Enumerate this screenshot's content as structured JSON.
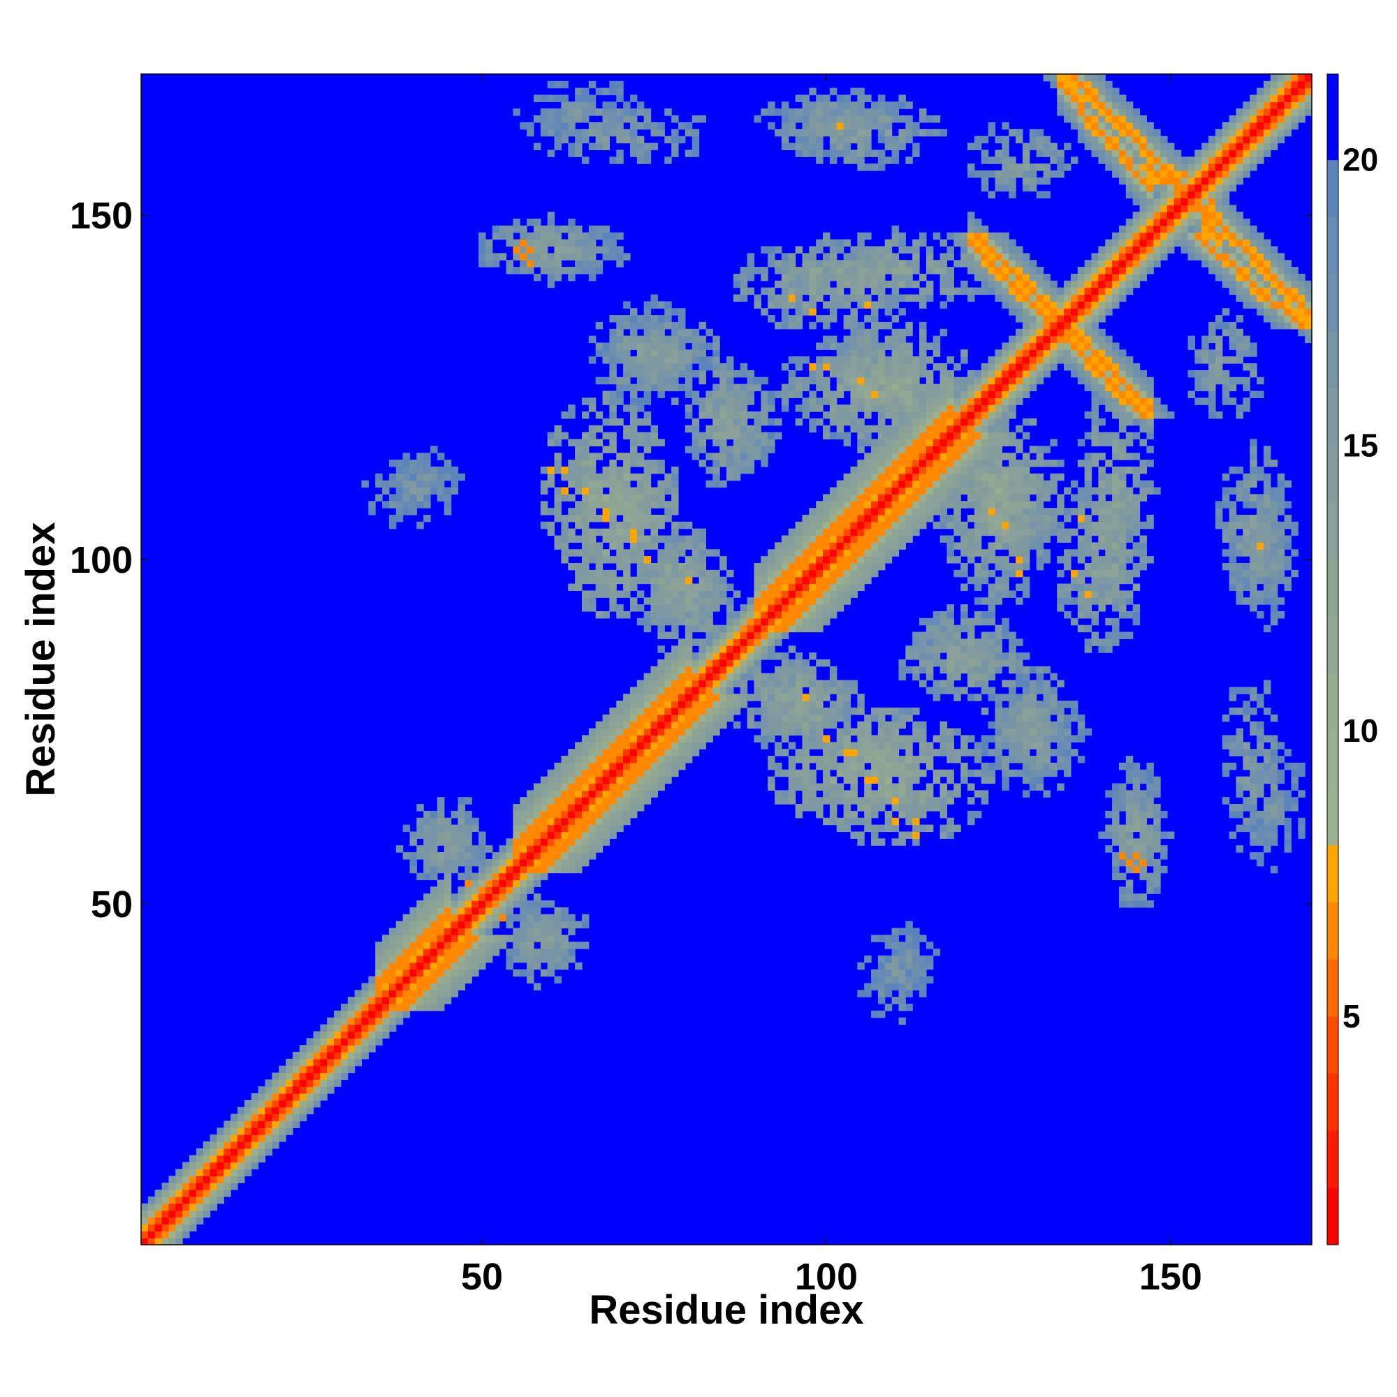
{
  "chart_data": {
    "type": "heatmap",
    "title": "",
    "xlabel": "Residue index",
    "ylabel": "Residue index",
    "xlim": [
      1,
      170
    ],
    "ylim": [
      1,
      170
    ],
    "n_residues": 170,
    "x_ticks": [
      50,
      100,
      150
    ],
    "y_ticks": [
      50,
      100,
      150
    ],
    "x_tick_labels": [
      "50",
      "100",
      "150"
    ],
    "y_tick_labels": [
      "50",
      "100",
      "150"
    ],
    "colorbar": {
      "range": [
        1,
        21.5
      ],
      "ticks": [
        5,
        10,
        15,
        20
      ],
      "tick_labels": [
        "5",
        "10",
        "15",
        "20"
      ],
      "levels": [
        {
          "upper": 2,
          "color": "#ff0000"
        },
        {
          "upper": 3,
          "color": "#ff1a00"
        },
        {
          "upper": 4,
          "color": "#ff3300"
        },
        {
          "upper": 5,
          "color": "#ff4d00"
        },
        {
          "upper": 6,
          "color": "#ff6a00"
        },
        {
          "upper": 7,
          "color": "#ff8800"
        },
        {
          "upper": 8,
          "color": "#ffa500"
        },
        {
          "upper": 9,
          "color": "#9cb18f"
        },
        {
          "upper": 10,
          "color": "#9bb08f"
        },
        {
          "upper": 11,
          "color": "#98ad90"
        },
        {
          "upper": 12,
          "color": "#93a893"
        },
        {
          "upper": 13,
          "color": "#8da495"
        },
        {
          "upper": 14,
          "color": "#8aa09a"
        },
        {
          "upper": 15,
          "color": "#859c9d"
        },
        {
          "upper": 16,
          "color": "#7f99a2"
        },
        {
          "upper": 17,
          "color": "#7895a8"
        },
        {
          "upper": 18,
          "color": "#6f8fae"
        },
        {
          "upper": 19,
          "color": "#678ab4"
        },
        {
          "upper": 20,
          "color": "#5b84bb"
        },
        {
          "upper": 21.5,
          "color": "#0000ff"
        }
      ]
    },
    "background_value": 21.5,
    "features": {
      "diagonal": {
        "value": 1
      },
      "diagonal_band": [
        {
          "from": 1,
          "to": 170,
          "offset": 1,
          "value": 4
        },
        {
          "from": 1,
          "to": 170,
          "offset": 2,
          "value": 7
        },
        {
          "from": 1,
          "to": 170,
          "offset": 3,
          "value": 10
        },
        {
          "from": 1,
          "to": 170,
          "offset": 4,
          "value": 13
        },
        {
          "from": 1,
          "to": 170,
          "offset": 5,
          "value": 17
        }
      ],
      "helix_segments": [
        {
          "from": 35,
          "to": 45
        },
        {
          "from": 55,
          "to": 80
        },
        {
          "from": 90,
          "to": 118
        }
      ],
      "antiparallel_strips": [
        {
          "x": [
            136,
            150
          ],
          "y": [
            170,
            156
          ],
          "value": 6
        },
        {
          "x": [
            122,
            136
          ],
          "y": [
            147,
            133
          ],
          "value": 6
        },
        {
          "x": [
            135,
            146
          ],
          "y": [
            132,
            121
          ],
          "value": 6
        },
        {
          "x": [
            154,
            169
          ],
          "y": [
            147,
            134
          ],
          "value": 6
        },
        {
          "x": [
            147,
            156
          ],
          "y": [
            157,
            150
          ],
          "value": 6
        }
      ],
      "contact_blobs": [
        {
          "cx": 68,
          "cy": 110,
          "rx": 10,
          "ry": 14,
          "value": 12
        },
        {
          "cx": 80,
          "cy": 95,
          "rx": 7,
          "ry": 10,
          "value": 13
        },
        {
          "cx": 105,
          "cy": 70,
          "rx": 14,
          "ry": 10,
          "value": 12
        },
        {
          "cx": 97,
          "cy": 78,
          "rx": 8,
          "ry": 8,
          "value": 13
        },
        {
          "cx": 110,
          "cy": 125,
          "rx": 12,
          "ry": 10,
          "value": 12
        },
        {
          "cx": 100,
          "cy": 140,
          "rx": 14,
          "ry": 7,
          "value": 13
        },
        {
          "cx": 75,
          "cy": 130,
          "rx": 10,
          "ry": 8,
          "value": 14
        },
        {
          "cx": 70,
          "cy": 162,
          "rx": 14,
          "ry": 5,
          "value": 15
        },
        {
          "cx": 100,
          "cy": 164,
          "rx": 10,
          "ry": 5,
          "value": 15
        },
        {
          "cx": 60,
          "cy": 145,
          "rx": 10,
          "ry": 5,
          "value": 14
        },
        {
          "cx": 125,
          "cy": 105,
          "rx": 8,
          "ry": 12,
          "value": 13
        },
        {
          "cx": 142,
          "cy": 110,
          "rx": 6,
          "ry": 16,
          "value": 13
        },
        {
          "cx": 162,
          "cy": 105,
          "rx": 6,
          "ry": 12,
          "value": 14
        },
        {
          "cx": 145,
          "cy": 60,
          "rx": 4,
          "ry": 12,
          "value": 14
        },
        {
          "cx": 130,
          "cy": 75,
          "rx": 6,
          "ry": 8,
          "value": 15
        },
        {
          "cx": 165,
          "cy": 65,
          "rx": 5,
          "ry": 10,
          "value": 16
        },
        {
          "cx": 110,
          "cy": 40,
          "rx": 6,
          "ry": 8,
          "value": 16
        },
        {
          "cx": 45,
          "cy": 60,
          "rx": 6,
          "ry": 6,
          "value": 14
        },
        {
          "cx": 58,
          "cy": 45,
          "rx": 5,
          "ry": 8,
          "value": 14
        },
        {
          "cx": 42,
          "cy": 112,
          "rx": 7,
          "ry": 5,
          "value": 17
        },
        {
          "cx": 158,
          "cy": 128,
          "rx": 6,
          "ry": 8,
          "value": 14
        },
        {
          "cx": 85,
          "cy": 120,
          "rx": 6,
          "ry": 10,
          "value": 13
        },
        {
          "cx": 120,
          "cy": 88,
          "rx": 8,
          "ry": 6,
          "value": 14
        }
      ],
      "hot_spots": [
        {
          "x": 56,
          "y": 146,
          "value": 6
        },
        {
          "x": 57,
          "y": 145,
          "value": 6
        },
        {
          "x": 143,
          "y": 57,
          "value": 6
        },
        {
          "x": 144,
          "y": 56,
          "value": 6
        },
        {
          "x": 145,
          "y": 55,
          "value": 6
        },
        {
          "x": 62,
          "y": 113,
          "value": 7
        },
        {
          "x": 65,
          "y": 110,
          "value": 7
        },
        {
          "x": 68,
          "y": 107,
          "value": 7
        },
        {
          "x": 72,
          "y": 104,
          "value": 7
        },
        {
          "x": 74,
          "y": 100,
          "value": 7
        },
        {
          "x": 95,
          "y": 138,
          "value": 7
        },
        {
          "x": 98,
          "y": 136,
          "value": 7
        },
        {
          "x": 100,
          "y": 128,
          "value": 7
        },
        {
          "x": 105,
          "y": 126,
          "value": 7
        },
        {
          "x": 107,
          "y": 124,
          "value": 7
        },
        {
          "x": 103,
          "y": 72,
          "value": 7
        },
        {
          "x": 106,
          "y": 68,
          "value": 7
        },
        {
          "x": 110,
          "y": 62,
          "value": 7
        },
        {
          "x": 113,
          "y": 60,
          "value": 7
        },
        {
          "x": 97,
          "y": 80,
          "value": 7
        },
        {
          "x": 128,
          "y": 98,
          "value": 7
        },
        {
          "x": 137,
          "y": 106,
          "value": 7
        },
        {
          "x": 163,
          "y": 102,
          "value": 7
        },
        {
          "x": 48,
          "y": 53,
          "value": 6
        },
        {
          "x": 53,
          "y": 48,
          "value": 6
        },
        {
          "x": 150,
          "y": 155,
          "value": 6
        },
        {
          "x": 152,
          "y": 156,
          "value": 6
        }
      ]
    }
  }
}
